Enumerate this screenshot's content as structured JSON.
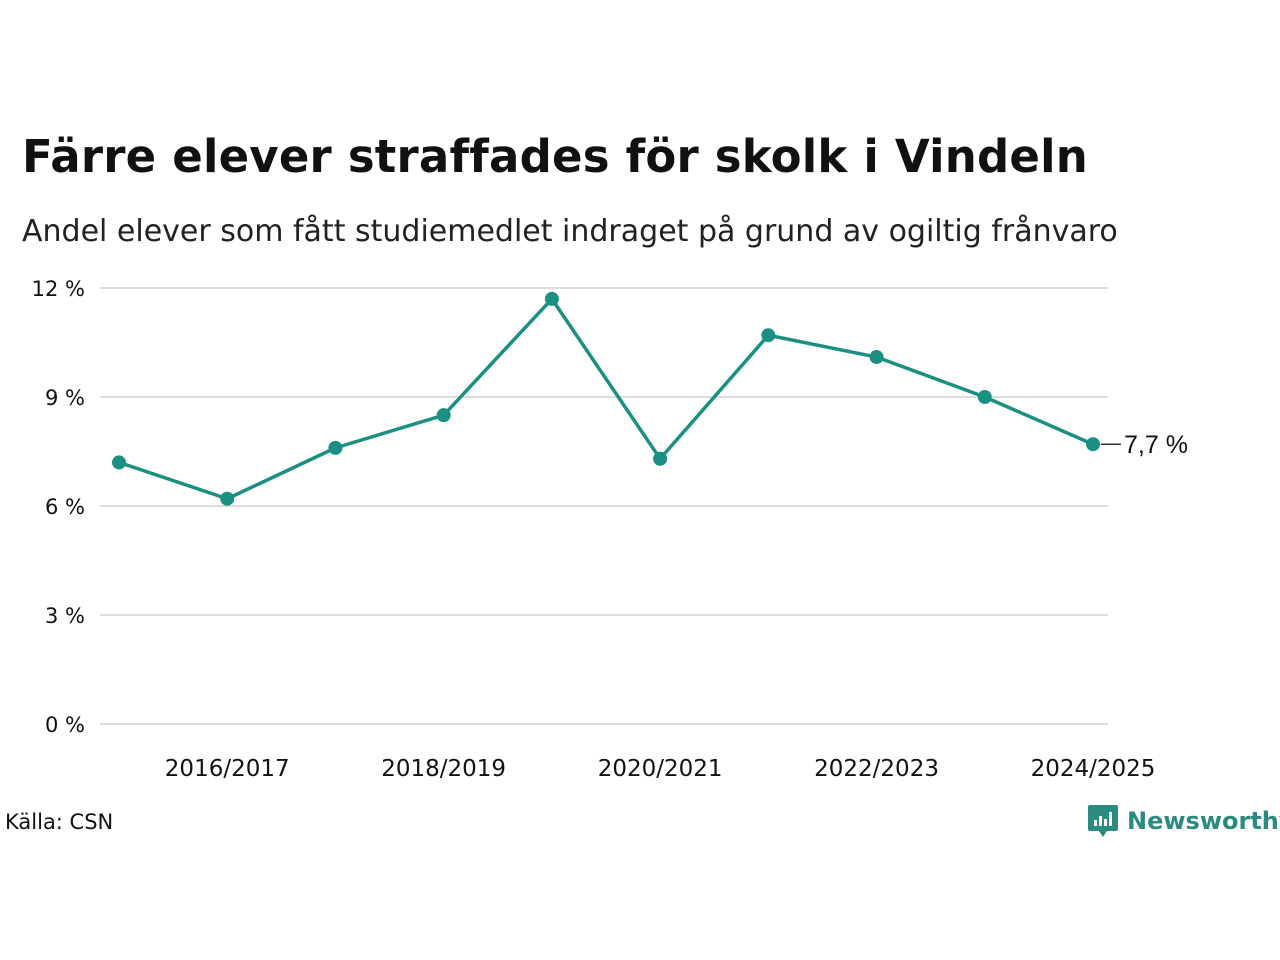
{
  "title": "Färre elever straffades för skolk i Vindeln",
  "subtitle": "Andel elever som fått studiemedlet indraget på grund av ogiltig frånvaro",
  "source": "Källa: CSN",
  "brand": "Newsworthy",
  "colors": {
    "line": "#1a8f82",
    "grid": "#dddddd",
    "brand": "#2a8b80"
  },
  "chart_data": {
    "type": "line",
    "categories": [
      "2015/2016",
      "2016/2017",
      "2017/2018",
      "2018/2019",
      "2019/2020",
      "2020/2021",
      "2021/2022",
      "2022/2023",
      "2023/2024",
      "2024/2025"
    ],
    "x_tick_labels": [
      "",
      "2016/2017",
      "",
      "2018/2019",
      "",
      "2020/2021",
      "",
      "2022/2023",
      "",
      "2024/2025"
    ],
    "series": [
      {
        "values": [
          7.2,
          6.2,
          7.6,
          8.5,
          11.7,
          7.3,
          10.7,
          10.1,
          9.0,
          7.7
        ]
      }
    ],
    "ylim": [
      0,
      12
    ],
    "y_ticks": [
      0,
      3,
      6,
      9,
      12
    ],
    "y_tick_labels": [
      "0 %",
      "3 %",
      "6 %",
      "9 %",
      "12 %"
    ],
    "end_label": "7,7 %",
    "grid": true,
    "legend": "none"
  }
}
